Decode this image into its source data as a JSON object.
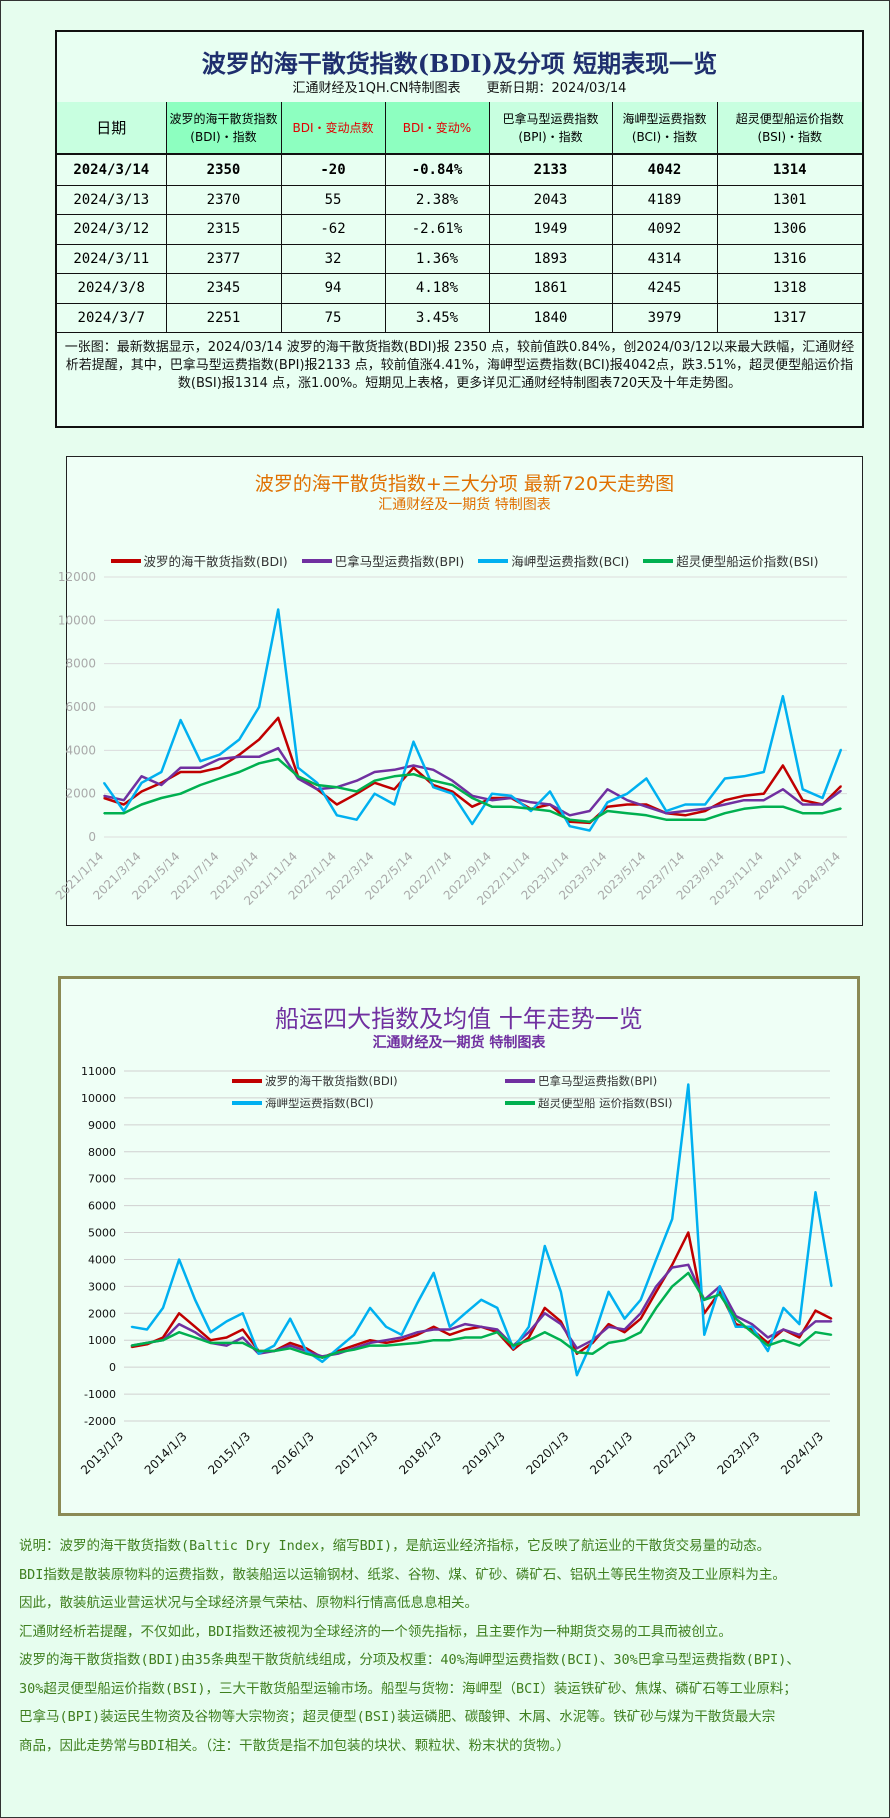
{
  "table": {
    "title": "波罗的海干散货指数(BDI)及分项 短期表现一览",
    "subtitle": "汇通财经及1QH.CN特制图表　　更新日期：2024/03/14",
    "headers": [
      "日期",
      "波罗的海干散货指数(BDI)・指数",
      "BDI・变动点数",
      "BDI・变动%",
      "巴拿马型运费指数(BPI)・指数",
      "海岬型运费指数(BCI)・指数",
      "超灵便型船运价指数(BSI)・指数"
    ],
    "rows": [
      [
        "2024/3/14",
        "2350",
        "-20",
        "-0.84%",
        "2133",
        "4042",
        "1314"
      ],
      [
        "2024/3/13",
        "2370",
        "55",
        "2.38%",
        "2043",
        "4189",
        "1301"
      ],
      [
        "2024/3/12",
        "2315",
        "-62",
        "-2.61%",
        "1949",
        "4092",
        "1306"
      ],
      [
        "2024/3/11",
        "2377",
        "32",
        "1.36%",
        "1893",
        "4314",
        "1316"
      ],
      [
        "2024/3/8",
        "2345",
        "94",
        "4.18%",
        "1861",
        "4245",
        "1318"
      ],
      [
        "2024/3/7",
        "2251",
        "75",
        "3.45%",
        "1840",
        "3979",
        "1317"
      ]
    ],
    "note": "一张图：最新数据显示，2024/03/14 波罗的海干散货指数(BDI)报 2350 点，较前值跌0.84%，创2024/03/12以来最大跌幅，汇通财经析若提醒，其中，巴拿马型运费指数(BPI)报2133 点，较前值涨4.41%，海岬型运费指数(BCI)报4042点，跌3.51%，超灵便型船运价指数(BSI)报1314 点，涨1.00%。短期见上表格，更多详见汇通财经特制图表720天及十年走势图。"
  },
  "chart_data": [
    {
      "type": "line",
      "title": "波罗的海干散货指数+三大分项  最新720天走势图",
      "subtitle": "汇通财经及一期货  特制图表",
      "ylim": [
        0,
        12000
      ],
      "yticks": [
        "0",
        "2000",
        "4000",
        "6000",
        "8000",
        "10000",
        "12000"
      ],
      "xticks": [
        "2021/1/14",
        "2021/3/14",
        "2021/5/14",
        "2021/7/14",
        "2021/9/14",
        "2021/11/14",
        "2022/1/14",
        "2022/3/14",
        "2022/5/14",
        "2022/7/14",
        "2022/9/14",
        "2022/11/14",
        "2023/1/14",
        "2023/3/14",
        "2023/5/14",
        "2023/7/14",
        "2023/9/14",
        "2023/11/14",
        "2024/1/14",
        "2024/3/14"
      ],
      "legend": "top",
      "grid": true,
      "x": [
        "2021/1/14",
        "2021/2/14",
        "2021/3/14",
        "2021/4/14",
        "2021/5/14",
        "2021/6/14",
        "2021/7/14",
        "2021/8/14",
        "2021/9/14",
        "2021/10/14",
        "2021/11/14",
        "2021/12/14",
        "2022/1/14",
        "2022/2/14",
        "2022/3/14",
        "2022/4/14",
        "2022/5/14",
        "2022/6/14",
        "2022/7/14",
        "2022/8/14",
        "2022/9/14",
        "2022/10/14",
        "2022/11/14",
        "2022/12/14",
        "2023/1/14",
        "2023/2/14",
        "2023/3/14",
        "2023/4/14",
        "2023/5/14",
        "2023/6/14",
        "2023/7/14",
        "2023/8/14",
        "2023/9/14",
        "2023/10/14",
        "2023/11/14",
        "2023/12/14",
        "2024/1/14",
        "2024/2/14",
        "2024/3/14"
      ],
      "series": [
        {
          "name": "波罗的海干散货指数(BDI)",
          "color": "#c00000",
          "values": [
            1800,
            1500,
            2100,
            2500,
            3000,
            3000,
            3200,
            3800,
            4500,
            5500,
            2800,
            2200,
            1500,
            2000,
            2500,
            2200,
            3200,
            2400,
            2100,
            1400,
            1800,
            1800,
            1300,
            1500,
            700,
            650,
            1400,
            1500,
            1500,
            1100,
            1000,
            1200,
            1700,
            1900,
            2000,
            3300,
            1700,
            1500,
            2350
          ]
        },
        {
          "name": "巴拿马型运费指数(BPI)",
          "color": "#7030a0",
          "values": [
            1900,
            1700,
            2800,
            2400,
            3200,
            3200,
            3600,
            3700,
            3700,
            4100,
            2700,
            2200,
            2300,
            2600,
            3000,
            3100,
            3300,
            3100,
            2600,
            1900,
            1700,
            1800,
            1600,
            1500,
            1000,
            1200,
            2200,
            1700,
            1400,
            1100,
            1200,
            1300,
            1500,
            1700,
            1700,
            2200,
            1500,
            1500,
            2133
          ]
        },
        {
          "name": "海岬型运费指数(BCI)",
          "color": "#00b0f0",
          "values": [
            2500,
            1200,
            2500,
            3000,
            5400,
            3500,
            3800,
            4500,
            6000,
            10500,
            3200,
            2500,
            1000,
            800,
            2000,
            1500,
            4400,
            2300,
            2000,
            600,
            2000,
            1900,
            1200,
            2100,
            500,
            300,
            1600,
            2000,
            2700,
            1200,
            1500,
            1500,
            2700,
            2800,
            3000,
            6500,
            2200,
            1800,
            4042
          ]
        },
        {
          "name": "超灵便型船运价指数(BSI)",
          "color": "#00b050",
          "values": [
            1100,
            1100,
            1500,
            1800,
            2000,
            2400,
            2700,
            3000,
            3400,
            3600,
            2800,
            2400,
            2300,
            2100,
            2600,
            2800,
            2900,
            2600,
            2400,
            1800,
            1400,
            1400,
            1300,
            1200,
            800,
            700,
            1200,
            1100,
            1000,
            800,
            800,
            800,
            1100,
            1300,
            1400,
            1400,
            1100,
            1100,
            1314
          ]
        }
      ]
    },
    {
      "type": "line",
      "title": "船运四大指数及均值 十年走势一览",
      "subtitle": "汇通财经及一期货 特制图表",
      "ylim": [
        -2000,
        11000
      ],
      "yticks": [
        "-2000",
        "-1000",
        "0",
        "1000",
        "2000",
        "3000",
        "4000",
        "5000",
        "6000",
        "7000",
        "8000",
        "9000",
        "10000",
        "11000"
      ],
      "xticks": [
        "2013/1/3",
        "2014/1/3",
        "2015/1/3",
        "2016/1/3",
        "2017/1/3",
        "2018/1/3",
        "2019/1/3",
        "2020/1/3",
        "2021/1/3",
        "2022/1/3",
        "2023/1/3",
        "2024/1/3"
      ],
      "legend": "top",
      "grid": true,
      "x": [
        "2013/2",
        "2013/5",
        "2013/8",
        "2013/11",
        "2014/2",
        "2014/5",
        "2014/8",
        "2014/11",
        "2015/2",
        "2015/5",
        "2015/8",
        "2015/11",
        "2016/2",
        "2016/5",
        "2016/8",
        "2016/11",
        "2017/2",
        "2017/5",
        "2017/8",
        "2017/11",
        "2018/2",
        "2018/5",
        "2018/8",
        "2018/11",
        "2019/2",
        "2019/5",
        "2019/8",
        "2019/11",
        "2020/2",
        "2020/5",
        "2020/8",
        "2020/11",
        "2021/2",
        "2021/5",
        "2021/8",
        "2021/11",
        "2022/2",
        "2022/5",
        "2022/8",
        "2022/11",
        "2023/2",
        "2023/5",
        "2023/8",
        "2023/11",
        "2024/2"
      ],
      "series": [
        {
          "name": "波罗的海干散货指数(BDI)",
          "color": "#c00000",
          "values": [
            750,
            850,
            1100,
            2000,
            1500,
            1000,
            1100,
            1400,
            600,
            600,
            900,
            700,
            350,
            600,
            800,
            1000,
            900,
            1000,
            1200,
            1500,
            1200,
            1400,
            1500,
            1300,
            650,
            1100,
            2200,
            1700,
            500,
            900,
            1600,
            1300,
            1800,
            2800,
            3800,
            5000,
            2000,
            2800,
            1600,
            1400,
            900,
            1400,
            1100,
            2100,
            1800
          ]
        },
        {
          "name": "巴拿马型运费指数(BPI)",
          "color": "#7030a0",
          "values": [
            800,
            900,
            1000,
            1600,
            1300,
            900,
            800,
            1100,
            500,
            600,
            800,
            600,
            400,
            500,
            700,
            900,
            1000,
            1100,
            1300,
            1400,
            1400,
            1600,
            1500,
            1400,
            800,
            1300,
            2000,
            1600,
            700,
            1000,
            1500,
            1400,
            2000,
            3000,
            3700,
            3800,
            2500,
            3000,
            1900,
            1600,
            1100,
            1400,
            1200,
            1700,
            1700
          ]
        },
        {
          "name": "海岬型运费指数(BCI)",
          "color": "#00b0f0",
          "values": [
            1500,
            1400,
            2200,
            4000,
            2500,
            1300,
            1700,
            2000,
            500,
            800,
            1800,
            600,
            200,
            700,
            1200,
            2200,
            1500,
            1200,
            2400,
            3500,
            1500,
            2000,
            2500,
            2200,
            700,
            1500,
            4500,
            2800,
            -300,
            1000,
            2800,
            1800,
            2500,
            4000,
            5500,
            10500,
            1200,
            3000,
            1500,
            1500,
            600,
            2200,
            1600,
            6500,
            3000
          ]
        },
        {
          "name": "超灵便型船 运价指数(BSI)",
          "color": "#00b050",
          "values": [
            800,
            900,
            1000,
            1300,
            1100,
            900,
            900,
            900,
            600,
            600,
            700,
            500,
            350,
            550,
            650,
            800,
            800,
            850,
            900,
            1000,
            1000,
            1100,
            1100,
            1300,
            800,
            1000,
            1300,
            1000,
            550,
            500,
            900,
            1000,
            1300,
            2200,
            3000,
            3500,
            2500,
            2700,
            1800,
            1300,
            800,
            1000,
            800,
            1300,
            1200
          ]
        }
      ]
    }
  ],
  "description": [
    "说明：波罗的海干散货指数(Baltic Dry Index，缩写BDI)，是航运业经济指标，它反映了航运业的干散货交易量的动态。",
    "BDI指数是散装原物料的运费指数，散装船运以运输钢材、纸浆、谷物、煤、矿砂、磷矿石、铝矾土等民生物资及工业原料为主。",
    "因此，散装航运业营运状况与全球经济景气荣枯、原物料行情高低息息相关。",
    "汇通财经析若提醒，不仅如此，BDI指数还被视为全球经济的一个领先指标，且主要作为一种期货交易的工具而被创立。",
    "波罗的海干散货指数(BDI)由35条典型干散货航线组成，分项及权重：40%海岬型运费指数(BCI)、30%巴拿马型运费指数(BPI)、",
    "30%超灵便型船运价指数(BSI)，三大干散货船型运输市场。船型与货物：海岬型（BCI）装运铁矿砂、焦煤、磷矿石等工业原料；",
    "巴拿马(BPI)装运民生物资及谷物等大宗物资；超灵便型(BSI)装运磷肥、碳酸钾、木屑、水泥等。铁矿砂与煤为干散货最大宗",
    "商品，因此走势常与BDI相关。（注：干散货是指不加包装的块状、颗粒状、粉末状的货物。）"
  ]
}
